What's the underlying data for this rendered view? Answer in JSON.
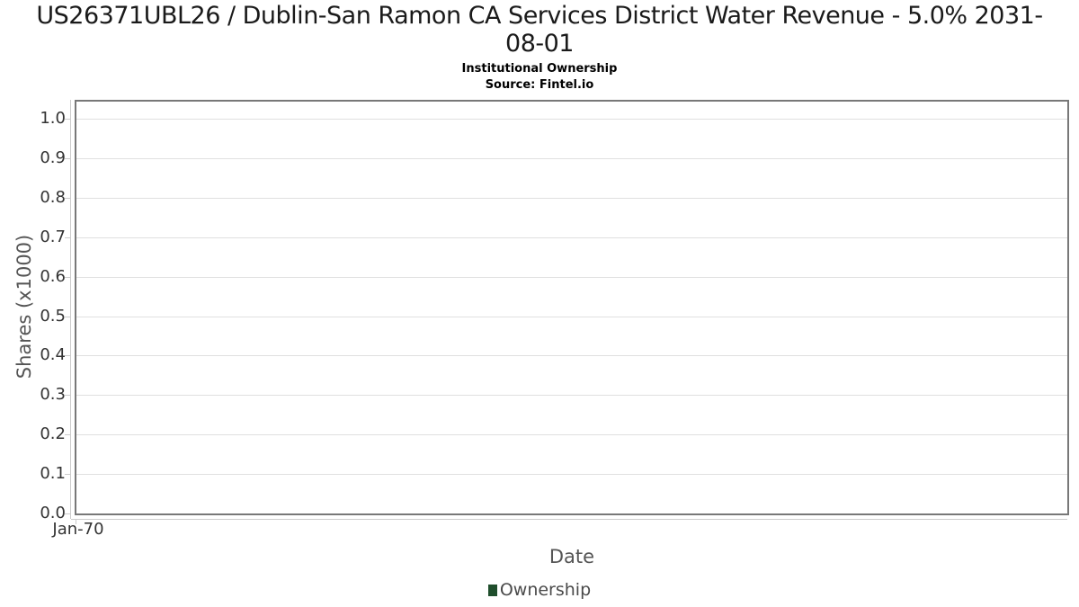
{
  "chart_data": {
    "type": "line",
    "title": "US26371UBL26 / Dublin-San Ramon CA Services District Water Revenue - 5.0% 2031-08-01",
    "subtitle": "Institutional Ownership",
    "source": "Source: Fintel.io",
    "xlabel": "Date",
    "ylabel": "Shares (x1000)",
    "x_ticks": [
      "Jan-70"
    ],
    "y_ticks": [
      0.0,
      0.1,
      0.2,
      0.3,
      0.4,
      0.5,
      0.6,
      0.7,
      0.8,
      0.9,
      1.0
    ],
    "y_tick_decimals": 1,
    "ylim": [
      0,
      1.05
    ],
    "grid": "horizontal",
    "legend": {
      "position": "bottom",
      "entries": [
        {
          "label": "Ownership",
          "color": "#1f4e2c"
        }
      ]
    },
    "series": [
      {
        "name": "Ownership",
        "color": "#1f4e2c",
        "points": []
      }
    ]
  },
  "colors": {
    "plot_border": "#787878",
    "gridline": "#e0e0e0",
    "axis_line": "#cccccc",
    "tick_label": "#333333",
    "axis_title": "#555555",
    "title_text": "#1a1a1a",
    "legend_text": "#4a4a4a",
    "background": "#ffffff"
  }
}
